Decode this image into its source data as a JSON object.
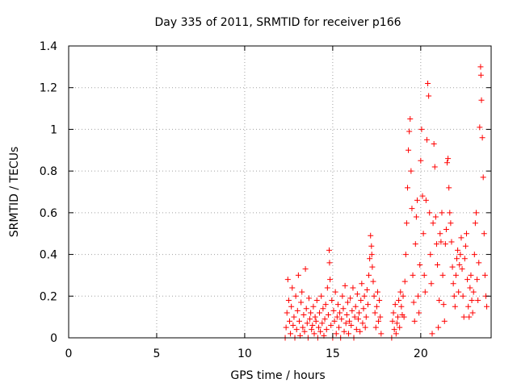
{
  "chart_data": {
    "type": "scatter",
    "title": "Day 335 of 2011, SRMTID for receiver p166",
    "xlabel": "GPS time / hours",
    "ylabel": "SRMTID / TECUs",
    "xlim": [
      0,
      24
    ],
    "ylim": [
      0,
      1.4
    ],
    "xticks": [
      0,
      5,
      10,
      15,
      20
    ],
    "xtick_labels": [
      "0",
      "5",
      "10",
      "15",
      "20"
    ],
    "yticks": [
      0,
      0.2,
      0.4,
      0.6,
      0.8,
      1,
      1.2,
      1.4
    ],
    "ytick_labels": [
      "0",
      "0.2",
      "0.4",
      "0.6",
      "0.8",
      "1",
      "1.2",
      "1.4"
    ],
    "grid": true,
    "marker": "+",
    "color": "#ff0000",
    "series": [
      {
        "name": "SRMTID",
        "points": [
          [
            12.3,
            0.0
          ],
          [
            12.35,
            0.05
          ],
          [
            12.4,
            0.12
          ],
          [
            12.45,
            0.28
          ],
          [
            12.5,
            0.18
          ],
          [
            12.55,
            0.08
          ],
          [
            12.6,
            0.02
          ],
          [
            12.65,
            0.15
          ],
          [
            12.7,
            0.24
          ],
          [
            12.75,
            0.06
          ],
          [
            12.8,
            0.1
          ],
          [
            12.85,
            0.0
          ],
          [
            12.9,
            0.2
          ],
          [
            12.95,
            0.04
          ],
          [
            13.0,
            0.13
          ],
          [
            13.05,
            0.3
          ],
          [
            13.1,
            0.08
          ],
          [
            13.15,
            0.01
          ],
          [
            13.2,
            0.17
          ],
          [
            13.25,
            0.22
          ],
          [
            13.3,
            0.05
          ],
          [
            13.35,
            0.11
          ],
          [
            13.4,
            0.03
          ],
          [
            13.45,
            0.33
          ],
          [
            13.5,
            0.14
          ],
          [
            13.55,
            0.07
          ],
          [
            13.6,
            0.0
          ],
          [
            13.65,
            0.19
          ],
          [
            13.7,
            0.09
          ],
          [
            13.75,
            0.12
          ],
          [
            13.8,
            0.04
          ],
          [
            13.85,
            0.06
          ],
          [
            13.9,
            0.15
          ],
          [
            13.95,
            0.02
          ],
          [
            14.0,
            0.1
          ],
          [
            14.05,
            0.08
          ],
          [
            14.1,
            0.18
          ],
          [
            14.15,
            0.0
          ],
          [
            14.2,
            0.05
          ],
          [
            14.25,
            0.12
          ],
          [
            14.3,
            0.03
          ],
          [
            14.35,
            0.2
          ],
          [
            14.4,
            0.07
          ],
          [
            14.45,
            0.14
          ],
          [
            14.5,
            0.01
          ],
          [
            14.55,
            0.09
          ],
          [
            14.6,
            0.16
          ],
          [
            14.65,
            0.04
          ],
          [
            14.7,
            0.24
          ],
          [
            14.75,
            0.11
          ],
          [
            14.8,
            0.42
          ],
          [
            14.82,
            0.36
          ],
          [
            14.85,
            0.28
          ],
          [
            14.9,
            0.06
          ],
          [
            14.95,
            0.18
          ],
          [
            15.0,
            0.0
          ],
          [
            15.05,
            0.13
          ],
          [
            15.1,
            0.08
          ],
          [
            15.15,
            0.22
          ],
          [
            15.2,
            0.02
          ],
          [
            15.25,
            0.1
          ],
          [
            15.3,
            0.16
          ],
          [
            15.35,
            0.05
          ],
          [
            15.4,
            0.12
          ],
          [
            15.45,
            0.0
          ],
          [
            15.5,
            0.09
          ],
          [
            15.55,
            0.2
          ],
          [
            15.6,
            0.14
          ],
          [
            15.65,
            0.03
          ],
          [
            15.7,
            0.25
          ],
          [
            15.75,
            0.07
          ],
          [
            15.8,
            0.11
          ],
          [
            15.85,
            0.17
          ],
          [
            15.9,
            0.02
          ],
          [
            15.95,
            0.08
          ],
          [
            16.0,
            0.19
          ],
          [
            16.05,
            0.06
          ],
          [
            16.1,
            0.13
          ],
          [
            16.15,
            0.24
          ],
          [
            16.2,
            0.0
          ],
          [
            16.25,
            0.1
          ],
          [
            16.3,
            0.15
          ],
          [
            16.35,
            0.04
          ],
          [
            16.4,
            0.21
          ],
          [
            16.45,
            0.09
          ],
          [
            16.5,
            0.12
          ],
          [
            16.55,
            0.03
          ],
          [
            16.6,
            0.18
          ],
          [
            16.65,
            0.26
          ],
          [
            16.7,
            0.07
          ],
          [
            16.75,
            0.14
          ],
          [
            16.8,
            0.2
          ],
          [
            16.85,
            0.05
          ],
          [
            16.9,
            0.1
          ],
          [
            16.95,
            0.23
          ],
          [
            17.0,
            0.16
          ],
          [
            17.05,
            0.3
          ],
          [
            17.1,
            0.38
          ],
          [
            17.15,
            0.49
          ],
          [
            17.2,
            0.44
          ],
          [
            17.22,
            0.4
          ],
          [
            17.25,
            0.34
          ],
          [
            17.3,
            0.27
          ],
          [
            17.35,
            0.2
          ],
          [
            17.4,
            0.12
          ],
          [
            17.45,
            0.05
          ],
          [
            17.5,
            0.15
          ],
          [
            17.55,
            0.22
          ],
          [
            17.6,
            0.08
          ],
          [
            17.65,
            0.18
          ],
          [
            17.7,
            0.1
          ],
          [
            17.75,
            0.02
          ],
          [
            18.35,
            0.0
          ],
          [
            18.4,
            0.08
          ],
          [
            18.45,
            0.12
          ],
          [
            18.5,
            0.04
          ],
          [
            18.55,
            0.16
          ],
          [
            18.6,
            0.02
          ],
          [
            18.65,
            0.07
          ],
          [
            18.7,
            0.1
          ],
          [
            18.75,
            0.18
          ],
          [
            18.8,
            0.05
          ],
          [
            18.85,
            0.22
          ],
          [
            18.9,
            0.15
          ],
          [
            18.95,
            0.11
          ],
          [
            19.0,
            0.2
          ],
          [
            19.05,
            0.1
          ],
          [
            19.1,
            0.27
          ],
          [
            19.15,
            0.4
          ],
          [
            19.2,
            0.55
          ],
          [
            19.25,
            0.72
          ],
          [
            19.3,
            0.9
          ],
          [
            19.35,
            0.99
          ],
          [
            19.4,
            1.05
          ],
          [
            19.45,
            0.8
          ],
          [
            19.5,
            0.62
          ],
          [
            19.55,
            0.3
          ],
          [
            19.6,
            0.17
          ],
          [
            19.65,
            0.08
          ],
          [
            19.7,
            0.45
          ],
          [
            19.75,
            0.58
          ],
          [
            19.8,
            0.66
          ],
          [
            19.85,
            0.2
          ],
          [
            19.9,
            0.12
          ],
          [
            19.95,
            0.35
          ],
          [
            20.0,
            0.85
          ],
          [
            20.05,
            1.0
          ],
          [
            20.1,
            0.68
          ],
          [
            20.15,
            0.5
          ],
          [
            20.2,
            0.3
          ],
          [
            20.25,
            0.22
          ],
          [
            20.3,
            0.66
          ],
          [
            20.35,
            0.95
          ],
          [
            20.4,
            1.22
          ],
          [
            20.45,
            1.16
          ],
          [
            20.5,
            0.6
          ],
          [
            20.55,
            0.4
          ],
          [
            20.6,
            0.26
          ],
          [
            20.65,
            0.02
          ],
          [
            20.7,
            0.55
          ],
          [
            20.75,
            0.93
          ],
          [
            20.8,
            0.82
          ],
          [
            20.85,
            0.58
          ],
          [
            20.9,
            0.45
          ],
          [
            20.95,
            0.35
          ],
          [
            21.0,
            0.05
          ],
          [
            21.05,
            0.18
          ],
          [
            21.1,
            0.5
          ],
          [
            21.15,
            0.46
          ],
          [
            21.2,
            0.6
          ],
          [
            21.25,
            0.3
          ],
          [
            21.3,
            0.16
          ],
          [
            21.35,
            0.08
          ],
          [
            21.4,
            0.45
          ],
          [
            21.45,
            0.52
          ],
          [
            21.5,
            0.84
          ],
          [
            21.55,
            0.86
          ],
          [
            21.6,
            0.72
          ],
          [
            21.65,
            0.6
          ],
          [
            21.7,
            0.55
          ],
          [
            21.75,
            0.46
          ],
          [
            21.8,
            0.34
          ],
          [
            21.85,
            0.26
          ],
          [
            21.9,
            0.2
          ],
          [
            21.95,
            0.15
          ],
          [
            22.0,
            0.3
          ],
          [
            22.05,
            0.38
          ],
          [
            22.1,
            0.42
          ],
          [
            22.15,
            0.22
          ],
          [
            22.2,
            0.35
          ],
          [
            22.25,
            0.4
          ],
          [
            22.3,
            0.48
          ],
          [
            22.35,
            0.33
          ],
          [
            22.4,
            0.2
          ],
          [
            22.45,
            0.1
          ],
          [
            22.5,
            0.38
          ],
          [
            22.55,
            0.44
          ],
          [
            22.6,
            0.5
          ],
          [
            22.65,
            0.28
          ],
          [
            22.7,
            0.15
          ],
          [
            22.75,
            0.1
          ],
          [
            22.8,
            0.24
          ],
          [
            22.85,
            0.3
          ],
          [
            22.9,
            0.18
          ],
          [
            22.95,
            0.12
          ],
          [
            23.0,
            0.22
          ],
          [
            23.05,
            0.4
          ],
          [
            23.1,
            0.55
          ],
          [
            23.15,
            0.6
          ],
          [
            23.2,
            0.28
          ],
          [
            23.25,
            0.18
          ],
          [
            23.3,
            0.36
          ],
          [
            23.35,
            1.01
          ],
          [
            23.4,
            1.3
          ],
          [
            23.42,
            1.26
          ],
          [
            23.45,
            1.14
          ],
          [
            23.5,
            0.96
          ],
          [
            23.55,
            0.77
          ],
          [
            23.6,
            0.5
          ],
          [
            23.65,
            0.3
          ],
          [
            23.7,
            0.2
          ],
          [
            23.75,
            0.15
          ]
        ]
      }
    ]
  }
}
